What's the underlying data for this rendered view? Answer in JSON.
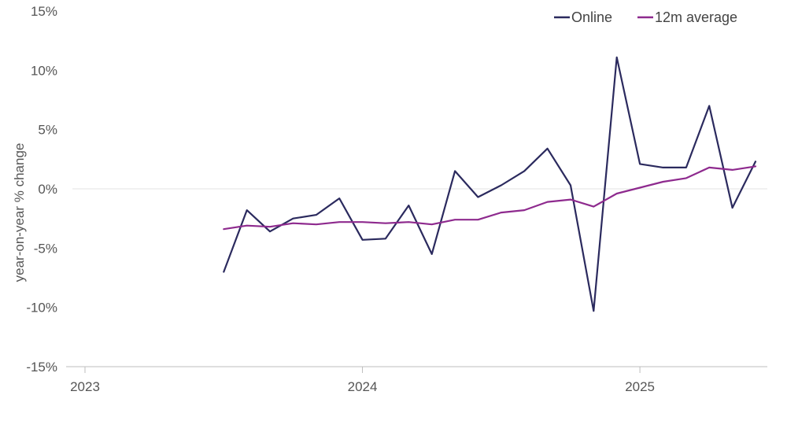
{
  "chart_data": {
    "type": "line",
    "title": "",
    "xlabel": "",
    "ylabel": "year-on-year % change",
    "y_ticks": [
      {
        "value": 15,
        "label": "15%"
      },
      {
        "value": 10,
        "label": "10%"
      },
      {
        "value": 5,
        "label": "5%"
      },
      {
        "value": 0,
        "label": "0%"
      },
      {
        "value": -5,
        "label": "-5%"
      },
      {
        "value": -10,
        "label": "-10%"
      },
      {
        "value": -15,
        "label": "-15%"
      }
    ],
    "ylim": [
      -15,
      15
    ],
    "x_range": [
      "2023-01",
      "2025-06"
    ],
    "x_ticks": [
      {
        "value": "2023-01",
        "label": "2023"
      },
      {
        "value": "2024-01",
        "label": "2024"
      },
      {
        "value": "2025-01",
        "label": "2025"
      }
    ],
    "zero_line": true,
    "grid": false,
    "legend_position": "top-right",
    "x": [
      "2023-07",
      "2023-08",
      "2023-09",
      "2023-10",
      "2023-11",
      "2023-12",
      "2024-01",
      "2024-02",
      "2024-03",
      "2024-04",
      "2024-05",
      "2024-06",
      "2024-07",
      "2024-08",
      "2024-09",
      "2024-10",
      "2024-11",
      "2024-12",
      "2025-01",
      "2025-02",
      "2025-03",
      "2025-04",
      "2025-05",
      "2025-06"
    ],
    "series": [
      {
        "name": "Online",
        "color": "#2b2a5e",
        "values": [
          -7.0,
          -1.8,
          -3.6,
          -2.5,
          -2.2,
          -0.8,
          -4.3,
          -4.2,
          -1.4,
          -5.5,
          1.5,
          -0.7,
          0.3,
          1.5,
          3.4,
          0.3,
          -10.3,
          11.1,
          2.1,
          1.8,
          1.8,
          7.0,
          -1.6,
          2.3
        ]
      },
      {
        "name": "12m average",
        "color": "#8e2a8e",
        "values": [
          -3.4,
          -3.1,
          -3.2,
          -2.9,
          -3.0,
          -2.8,
          -2.8,
          -2.9,
          -2.8,
          -3.0,
          -2.6,
          -2.6,
          -2.0,
          -1.8,
          -1.1,
          -0.9,
          -1.5,
          -0.4,
          0.1,
          0.6,
          0.9,
          1.8,
          1.6,
          1.9
        ]
      }
    ]
  }
}
